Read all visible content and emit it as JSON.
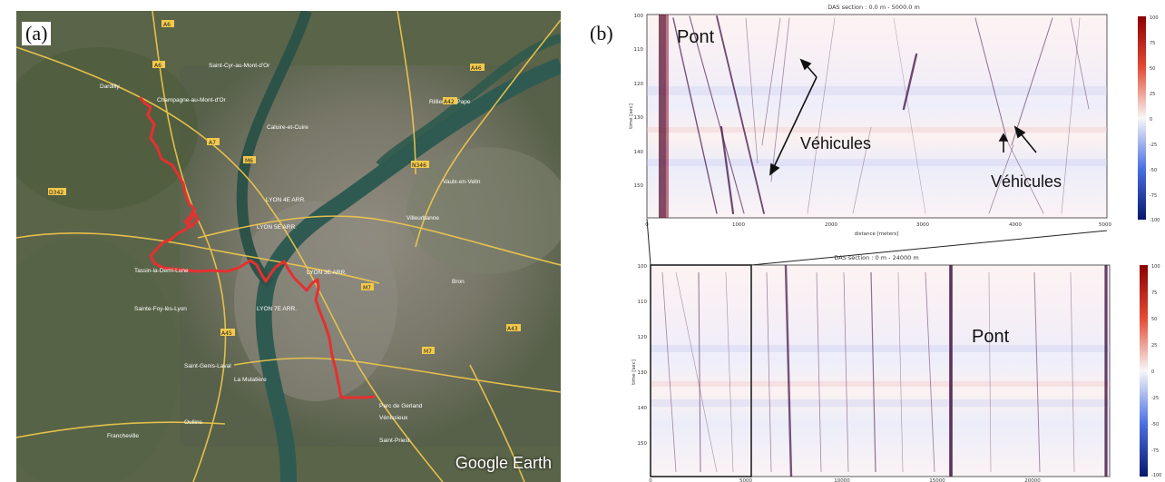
{
  "figure": {
    "label_a": "(a)",
    "label_b": "(b)"
  },
  "map": {
    "watermark": "Google Earth",
    "places": [
      "Saint-Cyr-au-Mont-d'Or",
      "Dardilly",
      "Champagne-au-Mont-d'Or",
      "Caluire-et-Cuire",
      "Rillieux-la-Pape",
      "Tassin-la-Demi-Lune",
      "LYON 5E ARR.",
      "LYON 4E ARR.",
      "LYON 3E ARR.",
      "LYON 7E ARR.",
      "Saint-Genis-Laval",
      "Oullins",
      "La Mulatière",
      "Bron",
      "Vénissieux",
      "Villeurbanne",
      "Vaulx-en-Velin",
      "Sainte-Foy-lès-Lyon",
      "Francheville",
      "Parc de Gerland",
      "Saint-Priest"
    ],
    "road_labels": [
      "A6",
      "A6",
      "A46",
      "A42",
      "A7",
      "N346",
      "A43",
      "D342",
      "M6",
      "M7",
      "M7",
      "A45"
    ],
    "colors": {
      "fiber_route": "#e53030"
    }
  },
  "das_top": {
    "title": "DAS section : 0.0 m - 5000.0 m",
    "ylabel": "time [sec]",
    "xlabel": "distance [meters]",
    "yticks": [
      "100",
      "110",
      "120",
      "130",
      "140",
      "150"
    ],
    "xticks": [
      "0",
      "1000",
      "2000",
      "3000",
      "4000",
      "5000"
    ],
    "annot_pont": "Pont",
    "annot_vehicules_1": "Véhicules",
    "annot_vehicules_2": "Véhicules",
    "colorbar_ticks": [
      "100",
      "75",
      "50",
      "25",
      "0",
      "-25",
      "-50",
      "-75",
      "-100"
    ]
  },
  "das_bottom": {
    "title": "DAS section : 0 m - 24000 m",
    "ylabel": "time [sec]",
    "yticks": [
      "100",
      "110",
      "120",
      "130",
      "140",
      "150"
    ],
    "xticks": [
      "0",
      "5000",
      "10000",
      "15000",
      "20000"
    ],
    "annot_pont": "Pont",
    "colorbar_ticks": [
      "100",
      "75",
      "50",
      "25",
      "0",
      "-25",
      "-50",
      "-75",
      "-100"
    ]
  }
}
